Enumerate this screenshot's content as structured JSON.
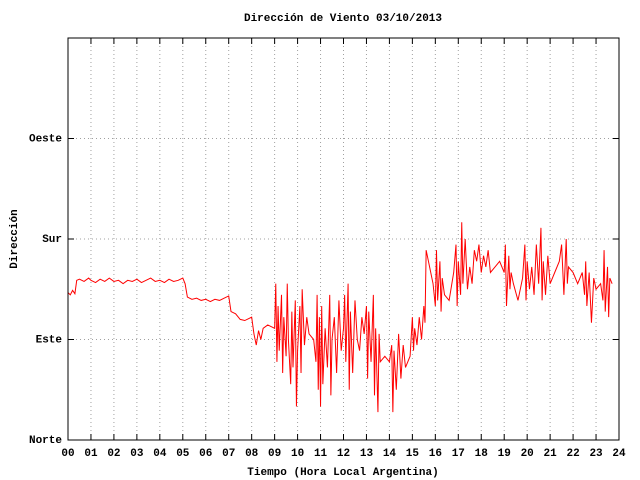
{
  "chart_data": {
    "type": "line",
    "title": "Dirección de Viento 03/10/2013",
    "xlabel": "Tiempo (Hora Local Argentina)",
    "ylabel": "Dirección",
    "xlim": [
      0,
      24
    ],
    "ylim": [
      0,
      360
    ],
    "xticks": [
      {
        "value": 0,
        "label": "00"
      },
      {
        "value": 1,
        "label": "01"
      },
      {
        "value": 2,
        "label": "02"
      },
      {
        "value": 3,
        "label": "03"
      },
      {
        "value": 4,
        "label": "04"
      },
      {
        "value": 5,
        "label": "05"
      },
      {
        "value": 6,
        "label": "06"
      },
      {
        "value": 7,
        "label": "07"
      },
      {
        "value": 8,
        "label": "08"
      },
      {
        "value": 9,
        "label": "09"
      },
      {
        "value": 10,
        "label": "10"
      },
      {
        "value": 11,
        "label": "11"
      },
      {
        "value": 12,
        "label": "12"
      },
      {
        "value": 13,
        "label": "13"
      },
      {
        "value": 14,
        "label": "14"
      },
      {
        "value": 15,
        "label": "15"
      },
      {
        "value": 16,
        "label": "16"
      },
      {
        "value": 17,
        "label": "17"
      },
      {
        "value": 18,
        "label": "18"
      },
      {
        "value": 19,
        "label": "19"
      },
      {
        "value": 20,
        "label": "20"
      },
      {
        "value": 21,
        "label": "21"
      },
      {
        "value": 22,
        "label": "22"
      },
      {
        "value": 23,
        "label": "23"
      },
      {
        "value": 24,
        "label": "24"
      }
    ],
    "yticks": [
      {
        "value": 0,
        "label": "Norte"
      },
      {
        "value": 90,
        "label": "Este"
      },
      {
        "value": 180,
        "label": "Sur"
      },
      {
        "value": 270,
        "label": "Oeste"
      }
    ],
    "grid": true,
    "color": "#ff0000",
    "x": [
      0,
      0.1,
      0.2,
      0.3,
      0.38,
      0.5,
      0.7,
      0.9,
      1.0,
      1.2,
      1.4,
      1.6,
      1.8,
      2.0,
      2.2,
      2.4,
      2.6,
      2.8,
      3.0,
      3.2,
      3.4,
      3.6,
      3.8,
      4.0,
      4.2,
      4.4,
      4.6,
      4.8,
      5.0,
      5.1,
      5.2,
      5.4,
      5.6,
      5.8,
      6.0,
      6.2,
      6.4,
      6.6,
      6.8,
      7.0,
      7.05,
      7.1,
      7.3,
      7.5,
      7.7,
      8.0,
      8.1,
      8.2,
      8.3,
      8.4,
      8.5,
      8.7,
      8.9,
      9.0,
      9.05,
      9.1,
      9.15,
      9.2,
      9.3,
      9.35,
      9.4,
      9.5,
      9.55,
      9.6,
      9.7,
      9.75,
      9.8,
      9.9,
      9.95,
      10.0,
      10.1,
      10.15,
      10.2,
      10.3,
      10.4,
      10.5,
      10.7,
      10.8,
      10.85,
      10.9,
      10.95,
      11.0,
      11.05,
      11.1,
      11.2,
      11.3,
      11.4,
      11.45,
      11.5,
      11.6,
      11.7,
      11.8,
      11.9,
      12.0,
      12.05,
      12.1,
      12.2,
      12.25,
      12.3,
      12.4,
      12.5,
      12.6,
      12.7,
      12.8,
      12.9,
      13.0,
      13.05,
      13.1,
      13.2,
      13.3,
      13.35,
      13.4,
      13.5,
      13.55,
      13.6,
      13.8,
      14.0,
      14.1,
      14.15,
      14.2,
      14.3,
      14.4,
      14.5,
      14.6,
      14.7,
      14.9,
      15.0,
      15.05,
      15.1,
      15.2,
      15.3,
      15.4,
      15.5,
      15.55,
      15.6,
      15.7,
      15.8,
      15.9,
      16.0,
      16.05,
      16.1,
      16.2,
      16.25,
      16.3,
      16.4,
      16.6,
      16.8,
      16.9,
      16.95,
      17.0,
      17.1,
      17.15,
      17.2,
      17.3,
      17.4,
      17.5,
      17.6,
      17.7,
      17.8,
      17.9,
      18.0,
      18.1,
      18.2,
      18.3,
      18.4,
      18.6,
      18.8,
      19.0,
      19.05,
      19.1,
      19.2,
      19.25,
      19.3,
      19.4,
      19.6,
      19.8,
      19.9,
      19.95,
      20.0,
      20.1,
      20.2,
      20.3,
      20.4,
      20.5,
      20.6,
      20.65,
      20.7,
      20.8,
      20.9,
      21.0,
      21.2,
      21.4,
      21.5,
      21.6,
      21.7,
      21.75,
      21.8,
      22.0,
      22.2,
      22.4,
      22.5,
      22.55,
      22.6,
      22.7,
      22.8,
      22.9,
      23.0,
      23.2,
      23.3,
      23.35,
      23.4,
      23.5,
      23.55,
      23.6,
      23.7
    ],
    "values": [
      132,
      130,
      134,
      131,
      143,
      144,
      142,
      145,
      143,
      141,
      144,
      142,
      145,
      142,
      143,
      140,
      143,
      142,
      144,
      141,
      143,
      145,
      142,
      143,
      141,
      144,
      142,
      143,
      145,
      140,
      128,
      126,
      127,
      125,
      126,
      124,
      126,
      125,
      127,
      129,
      122,
      115,
      113,
      108,
      107,
      110,
      95,
      85,
      98,
      90,
      100,
      103,
      101,
      100,
      140,
      70,
      120,
      80,
      130,
      60,
      110,
      75,
      140,
      90,
      50,
      115,
      65,
      125,
      30,
      80,
      120,
      60,
      135,
      85,
      110,
      95,
      90,
      70,
      130,
      45,
      110,
      30,
      120,
      50,
      100,
      65,
      130,
      40,
      90,
      110,
      60,
      125,
      80,
      100,
      130,
      70,
      140,
      45,
      115,
      60,
      125,
      90,
      80,
      110,
      95,
      120,
      55,
      115,
      70,
      130,
      40,
      100,
      25,
      95,
      70,
      75,
      70,
      85,
      25,
      80,
      45,
      95,
      55,
      85,
      65,
      75,
      110,
      80,
      100,
      85,
      110,
      90,
      120,
      105,
      170,
      160,
      150,
      140,
      120,
      170,
      125,
      160,
      115,
      145,
      130,
      125,
      150,
      175,
      120,
      160,
      130,
      195,
      140,
      180,
      135,
      155,
      140,
      170,
      160,
      175,
      150,
      165,
      155,
      170,
      150,
      155,
      160,
      150,
      175,
      120,
      165,
      135,
      150,
      140,
      125,
      145,
      175,
      125,
      160,
      135,
      155,
      130,
      175,
      140,
      190,
      125,
      160,
      130,
      165,
      140,
      150,
      160,
      175,
      130,
      180,
      140,
      155,
      150,
      140,
      150,
      130,
      160,
      120,
      150,
      105,
      145,
      135,
      140,
      125,
      170,
      115,
      155,
      110,
      145,
      140
    ]
  }
}
